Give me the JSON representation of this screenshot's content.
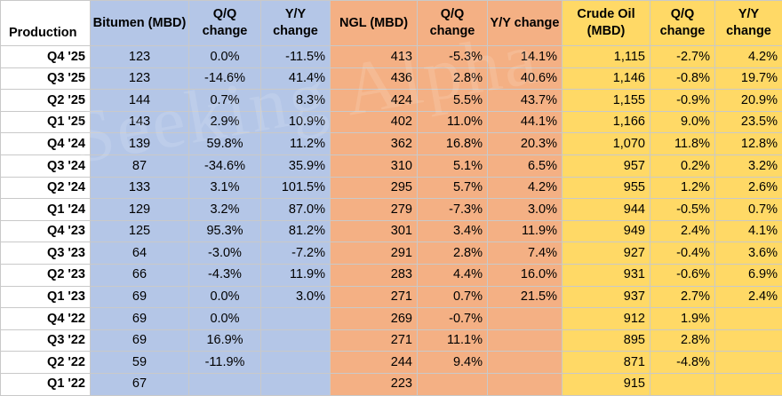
{
  "headers": {
    "production": "Production",
    "bitumen": "Bitumen (MBD)",
    "bit_qq": "Q/Q change",
    "bit_yy": "Y/Y change",
    "ngl": "NGL (MBD)",
    "ngl_qq": "Q/Q change",
    "ngl_yy": "Y/Y change",
    "oil": "Crude Oil (MBD)",
    "oil_qq": "Q/Q change",
    "oil_yy": "Y/Y change"
  },
  "watermark": "Seeking Alpha",
  "colors": {
    "bitumen": "#b4c6e7",
    "ngl": "#f4b084",
    "crude_oil": "#ffd966"
  },
  "rows": [
    [
      "Q4 '25",
      "123",
      "0.0%",
      "-11.5%",
      "413",
      "-5.3%",
      "14.1%",
      "1,115",
      "-2.7%",
      "4.2%"
    ],
    [
      "Q3 '25",
      "123",
      "-14.6%",
      "41.4%",
      "436",
      "2.8%",
      "40.6%",
      "1,146",
      "-0.8%",
      "19.7%"
    ],
    [
      "Q2 '25",
      "144",
      "0.7%",
      "8.3%",
      "424",
      "5.5%",
      "43.7%",
      "1,155",
      "-0.9%",
      "20.9%"
    ],
    [
      "Q1 '25",
      "143",
      "2.9%",
      "10.9%",
      "402",
      "11.0%",
      "44.1%",
      "1,166",
      "9.0%",
      "23.5%"
    ],
    [
      "Q4 '24",
      "139",
      "59.8%",
      "11.2%",
      "362",
      "16.8%",
      "20.3%",
      "1,070",
      "11.8%",
      "12.8%"
    ],
    [
      "Q3 '24",
      "87",
      "-34.6%",
      "35.9%",
      "310",
      "5.1%",
      "6.5%",
      "957",
      "0.2%",
      "3.2%"
    ],
    [
      "Q2 '24",
      "133",
      "3.1%",
      "101.5%",
      "295",
      "5.7%",
      "4.2%",
      "955",
      "1.2%",
      "2.6%"
    ],
    [
      "Q1 '24",
      "129",
      "3.2%",
      "87.0%",
      "279",
      "-7.3%",
      "3.0%",
      "944",
      "-0.5%",
      "0.7%"
    ],
    [
      "Q4 '23",
      "125",
      "95.3%",
      "81.2%",
      "301",
      "3.4%",
      "11.9%",
      "949",
      "2.4%",
      "4.1%"
    ],
    [
      "Q3 '23",
      "64",
      "-3.0%",
      "-7.2%",
      "291",
      "2.8%",
      "7.4%",
      "927",
      "-0.4%",
      "3.6%"
    ],
    [
      "Q2 '23",
      "66",
      "-4.3%",
      "11.9%",
      "283",
      "4.4%",
      "16.0%",
      "931",
      "-0.6%",
      "6.9%"
    ],
    [
      "Q1 '23",
      "69",
      "0.0%",
      "3.0%",
      "271",
      "0.7%",
      "21.5%",
      "937",
      "2.7%",
      "2.4%"
    ],
    [
      "Q4 '22",
      "69",
      "0.0%",
      "",
      "269",
      "-0.7%",
      "",
      "912",
      "1.9%",
      ""
    ],
    [
      "Q3 '22",
      "69",
      "16.9%",
      "",
      "271",
      "11.1%",
      "",
      "895",
      "2.8%",
      ""
    ],
    [
      "Q2 '22",
      "59",
      "-11.9%",
      "",
      "244",
      "9.4%",
      "",
      "871",
      "-4.8%",
      ""
    ],
    [
      "Q1 '22",
      "67",
      "",
      "",
      "223",
      "",
      "",
      "915",
      "",
      ""
    ]
  ]
}
